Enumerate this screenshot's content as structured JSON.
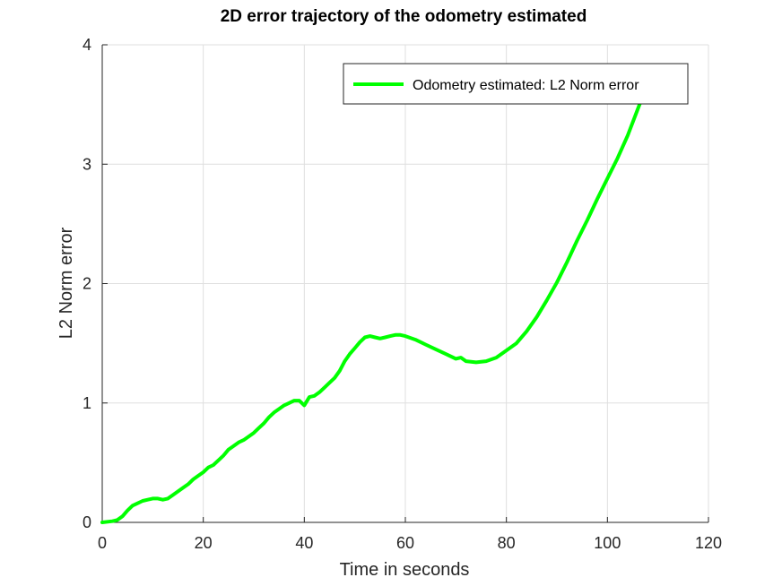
{
  "chart_data": {
    "type": "line",
    "title": "2D error trajectory of the odometry estimated",
    "xlabel": "Time in seconds",
    "ylabel": "L2 Norm error",
    "xlim": [
      0,
      120
    ],
    "ylim": [
      0,
      4
    ],
    "xticks": [
      0,
      20,
      40,
      60,
      80,
      100,
      120
    ],
    "yticks": [
      0,
      1,
      2,
      3,
      4
    ],
    "grid": true,
    "legend_position": "top-right",
    "series": [
      {
        "name": "Odometry estimated: L2 Norm error",
        "color": "#00ff00",
        "x": [
          0,
          2,
          3,
          4,
          5,
          6,
          7,
          8,
          9,
          10,
          11,
          12,
          13,
          14,
          15,
          16,
          17,
          18,
          19,
          20,
          21,
          22,
          23,
          24,
          25,
          26,
          27,
          28,
          29,
          30,
          31,
          32,
          33,
          34,
          35,
          36,
          37,
          38,
          39,
          40,
          41,
          42,
          43,
          44,
          45,
          46,
          47,
          48,
          49,
          50,
          51,
          52,
          53,
          54,
          55,
          56,
          57,
          58,
          59,
          60,
          62,
          64,
          66,
          68,
          70,
          71,
          72,
          74,
          76,
          78,
          80,
          82,
          84,
          86,
          88,
          90,
          92,
          94,
          96,
          98,
          100,
          102,
          104,
          106,
          108,
          110
        ],
        "y": [
          0.0,
          0.01,
          0.02,
          0.05,
          0.1,
          0.14,
          0.16,
          0.18,
          0.19,
          0.2,
          0.2,
          0.19,
          0.2,
          0.23,
          0.26,
          0.29,
          0.32,
          0.36,
          0.39,
          0.42,
          0.46,
          0.48,
          0.52,
          0.56,
          0.61,
          0.64,
          0.67,
          0.69,
          0.72,
          0.75,
          0.79,
          0.83,
          0.88,
          0.92,
          0.95,
          0.98,
          1.0,
          1.02,
          1.02,
          0.98,
          1.05,
          1.06,
          1.09,
          1.13,
          1.17,
          1.21,
          1.27,
          1.35,
          1.41,
          1.46,
          1.51,
          1.55,
          1.56,
          1.55,
          1.54,
          1.55,
          1.56,
          1.57,
          1.57,
          1.56,
          1.53,
          1.49,
          1.45,
          1.41,
          1.37,
          1.38,
          1.35,
          1.34,
          1.35,
          1.38,
          1.44,
          1.5,
          1.6,
          1.72,
          1.86,
          2.01,
          2.18,
          2.36,
          2.53,
          2.71,
          2.88,
          3.05,
          3.24,
          3.46,
          3.68,
          3.83
        ]
      }
    ]
  }
}
